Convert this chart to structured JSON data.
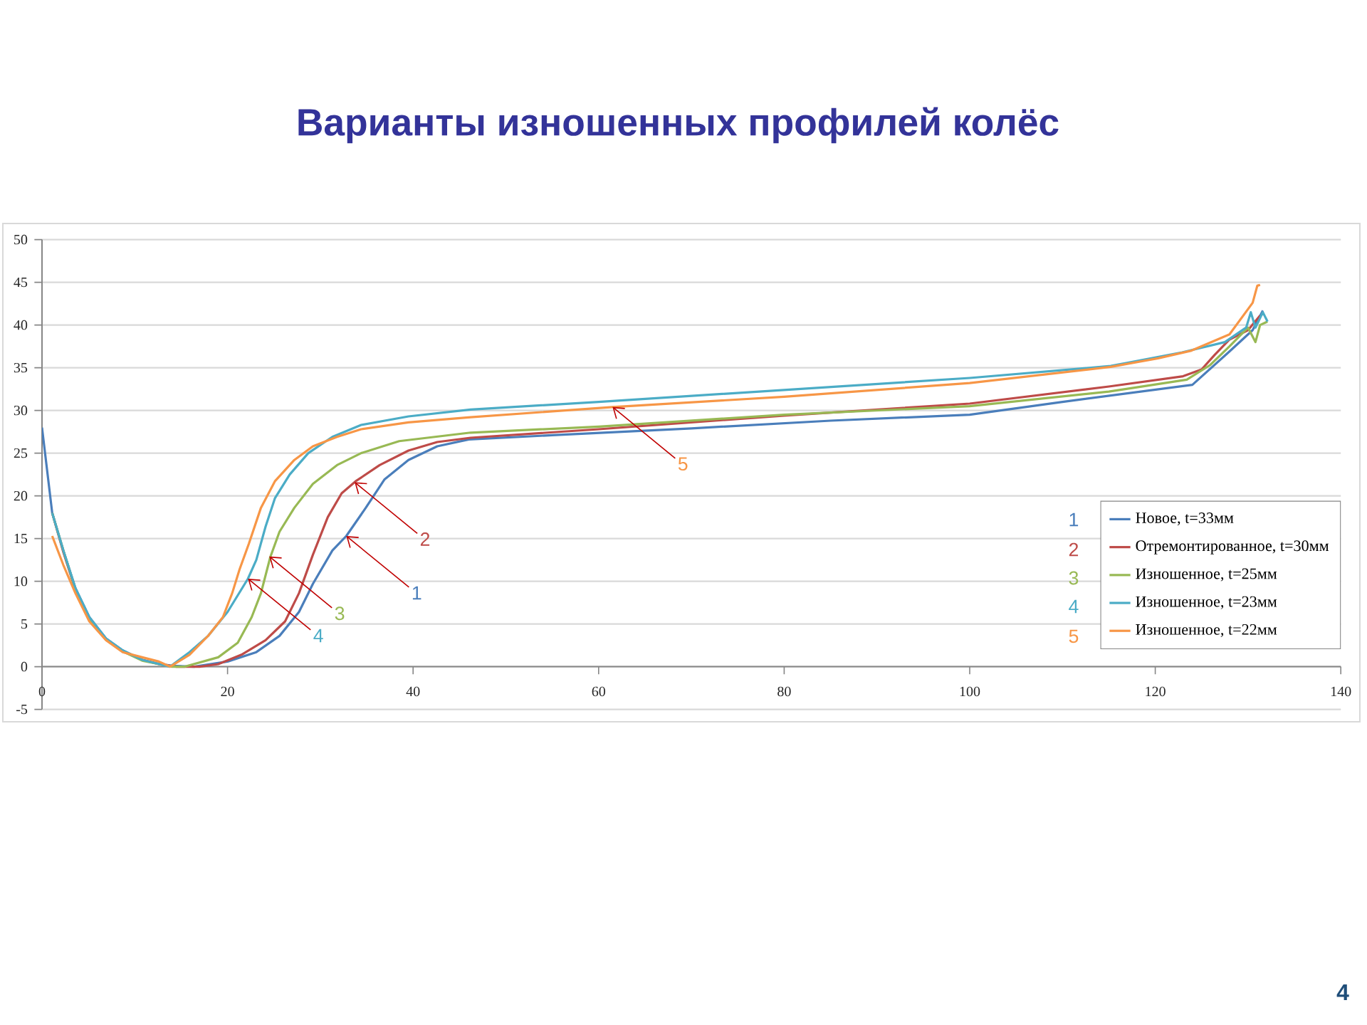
{
  "chart_data": {
    "type": "line",
    "title": "Варианты изношенных профилей колёс",
    "xlim": [
      0,
      140
    ],
    "xticks": [
      0,
      20,
      40,
      60,
      80,
      100,
      120,
      140
    ],
    "ylim": [
      -5,
      50
    ],
    "yticks": [
      -5,
      0,
      5,
      10,
      15,
      20,
      25,
      30,
      35,
      40,
      45,
      50
    ],
    "grid": "y",
    "legend": "bottom right",
    "series": [
      {
        "name": "Новое, t=33мм",
        "color": "#4a7ebb",
        "x": [
          0,
          1.1,
          2.3,
          3.6,
          5.1,
          6.9,
          8.7,
          10.8,
          12.3,
          14,
          16.4,
          20,
          23.1,
          25.6,
          27.7,
          29.2,
          31.3,
          32.8,
          34.9,
          36.9,
          39.5,
          42.6,
          46,
          55,
          70,
          85,
          100,
          110,
          124,
          128,
          130.5,
          131.6
        ],
        "values": [
          28,
          18,
          13.6,
          9.2,
          5.8,
          3.3,
          1.9,
          0.8,
          0.4,
          0.1,
          0,
          0.6,
          1.7,
          3.6,
          6.4,
          9.7,
          13.6,
          15.3,
          18.6,
          21.9,
          24.2,
          25.8,
          26.6,
          27.1,
          27.9,
          28.8,
          29.5,
          31,
          33,
          36.9,
          39.4,
          41.7
        ]
      },
      {
        "name": "Отремонтированное, t=30мм",
        "color": "#be4b48",
        "x": [
          1.1,
          2.3,
          3.6,
          5.1,
          6.9,
          8.7,
          10.8,
          12.6,
          14.5,
          17,
          19,
          21.5,
          24.1,
          26.2,
          27.7,
          29.2,
          30.8,
          32.3,
          33.8,
          36.4,
          39.5,
          42.6,
          46.2,
          60,
          80,
          100,
          115,
          123,
          125,
          126.4,
          128,
          130,
          131.3
        ],
        "values": [
          18,
          13.4,
          9,
          5.6,
          3.2,
          1.8,
          0.8,
          0.3,
          0,
          0,
          0.3,
          1.4,
          3.1,
          5.3,
          8.6,
          13.1,
          17.5,
          20.3,
          21.7,
          23.6,
          25.3,
          26.3,
          26.8,
          27.8,
          29.4,
          30.8,
          32.8,
          34,
          34.8,
          36.5,
          38.3,
          39.4,
          41.1
        ]
      },
      {
        "name": "Изношенное, t=25мм",
        "color": "#98b954",
        "x": [
          1.1,
          2.3,
          3.6,
          5.1,
          6.9,
          8.7,
          10.8,
          12.6,
          14,
          15.4,
          19,
          21.1,
          22.6,
          23.6,
          24.6,
          25.6,
          27.2,
          29.2,
          31.8,
          34.4,
          38.5,
          46.2,
          60,
          80,
          100,
          115,
          123.4,
          125.9,
          128,
          130,
          130.8,
          131.3,
          132.1
        ],
        "values": [
          18,
          13.6,
          9.1,
          5.6,
          3.2,
          1.8,
          0.7,
          0.3,
          0,
          0,
          1.1,
          2.8,
          5.8,
          8.6,
          12.8,
          15.8,
          18.6,
          21.4,
          23.6,
          25,
          26.4,
          27.4,
          28.1,
          29.5,
          30.5,
          32.2,
          33.6,
          35.3,
          37.5,
          39.7,
          38,
          40,
          40.4
        ]
      },
      {
        "name": "Изношенное, t=23мм",
        "color": "#4bacc6",
        "x": [
          1.1,
          2.3,
          3.6,
          5.1,
          6.9,
          8.7,
          10.8,
          12.3,
          13.8,
          15.9,
          17.9,
          20,
          22.2,
          23.1,
          24.1,
          25.1,
          26.7,
          28.7,
          31.3,
          34.4,
          39.5,
          46.2,
          60,
          80,
          100,
          115.2,
          122.9,
          127.5,
          129.8,
          130.3,
          130.8,
          131.6,
          132.1
        ],
        "values": [
          18,
          13.6,
          9.2,
          5.8,
          3.3,
          1.9,
          0.8,
          0.4,
          0,
          1.7,
          3.6,
          6.4,
          10.3,
          12.5,
          16.4,
          19.7,
          22.5,
          25,
          26.9,
          28.3,
          29.3,
          30.1,
          31,
          32.4,
          33.8,
          35.2,
          36.8,
          38,
          39.7,
          41.5,
          39.7,
          41.5,
          40.4
        ]
      },
      {
        "name": "Изношенное, t=22мм",
        "color": "#f79646",
        "x": [
          1.1,
          2.3,
          3.6,
          5.1,
          6.9,
          8.7,
          10.8,
          12.6,
          13.8,
          15.9,
          17.9,
          19.5,
          20.5,
          21.3,
          22.3,
          23.6,
          25.1,
          27.2,
          29.2,
          31.8,
          34.4,
          39.5,
          46.2,
          61.5,
          80,
          100,
          115.2,
          120.3,
          123.9,
          128,
          130.5,
          131,
          131.3
        ],
        "values": [
          15.3,
          11.9,
          8.6,
          5.3,
          3.1,
          1.7,
          1.1,
          0.6,
          0,
          1.4,
          3.6,
          5.8,
          8.6,
          11.4,
          14.4,
          18.6,
          21.7,
          24.2,
          25.8,
          26.9,
          27.8,
          28.6,
          29.2,
          30.4,
          31.6,
          33.2,
          35.1,
          36.1,
          37,
          38.9,
          42.6,
          44.6,
          44.7
        ]
      }
    ],
    "annotations": [
      {
        "text": "1",
        "x": 32.8,
        "y": 15.3
      },
      {
        "text": "2",
        "x": 33.7,
        "y": 21.6
      },
      {
        "text": "3",
        "x": 24.5,
        "y": 12.9
      },
      {
        "text": "4",
        "x": 22.2,
        "y": 10.3
      },
      {
        "text": "5",
        "x": 61.5,
        "y": 30.4
      },
      "1",
      "2",
      "3",
      "4",
      "5",
      "4"
    ]
  }
}
